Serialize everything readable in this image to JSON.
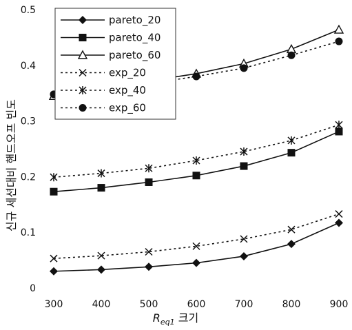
{
  "chart_data": {
    "type": "line",
    "x": [
      300,
      400,
      500,
      600,
      700,
      800,
      900
    ],
    "xlabel_main": "R",
    "xlabel_sub": "eq1",
    "xlabel_suffix": " 크기",
    "ylabel": "신규 세션대비 핸드오프 빈도",
    "xlim": [
      300,
      900
    ],
    "ylim": [
      0,
      0.5
    ],
    "yticks": [
      0,
      0.1,
      0.2,
      0.3,
      0.4,
      0.5
    ],
    "ytick_labels": [
      "0",
      "0.1",
      "0.2",
      "0.3",
      "0.4",
      "0.5"
    ],
    "xtick_labels": [
      "300",
      "400",
      "500",
      "600",
      "700",
      "800",
      "900"
    ],
    "legend_position": "top-left",
    "grid": false,
    "series": [
      {
        "name": "pareto_20",
        "marker": "diamond",
        "line": "solid",
        "values": [
          0.03,
          0.033,
          0.038,
          0.045,
          0.057,
          0.079,
          0.117
        ]
      },
      {
        "name": "pareto_40",
        "marker": "square",
        "line": "solid",
        "values": [
          0.173,
          0.18,
          0.19,
          0.202,
          0.219,
          0.243,
          0.281
        ]
      },
      {
        "name": "pareto_60",
        "marker": "triangle-open",
        "line": "solid",
        "values": [
          0.345,
          0.362,
          0.372,
          0.385,
          0.403,
          0.429,
          0.464
        ]
      },
      {
        "name": "exp_20",
        "marker": "x",
        "line": "dotted",
        "values": [
          0.053,
          0.058,
          0.065,
          0.075,
          0.088,
          0.105,
          0.133
        ]
      },
      {
        "name": "exp_40",
        "marker": "asterisk",
        "line": "dotted",
        "values": [
          0.199,
          0.206,
          0.215,
          0.229,
          0.245,
          0.265,
          0.293
        ]
      },
      {
        "name": "exp_60",
        "marker": "circle",
        "line": "dotted",
        "values": [
          0.348,
          0.358,
          0.367,
          0.38,
          0.395,
          0.418,
          0.443
        ]
      }
    ]
  }
}
